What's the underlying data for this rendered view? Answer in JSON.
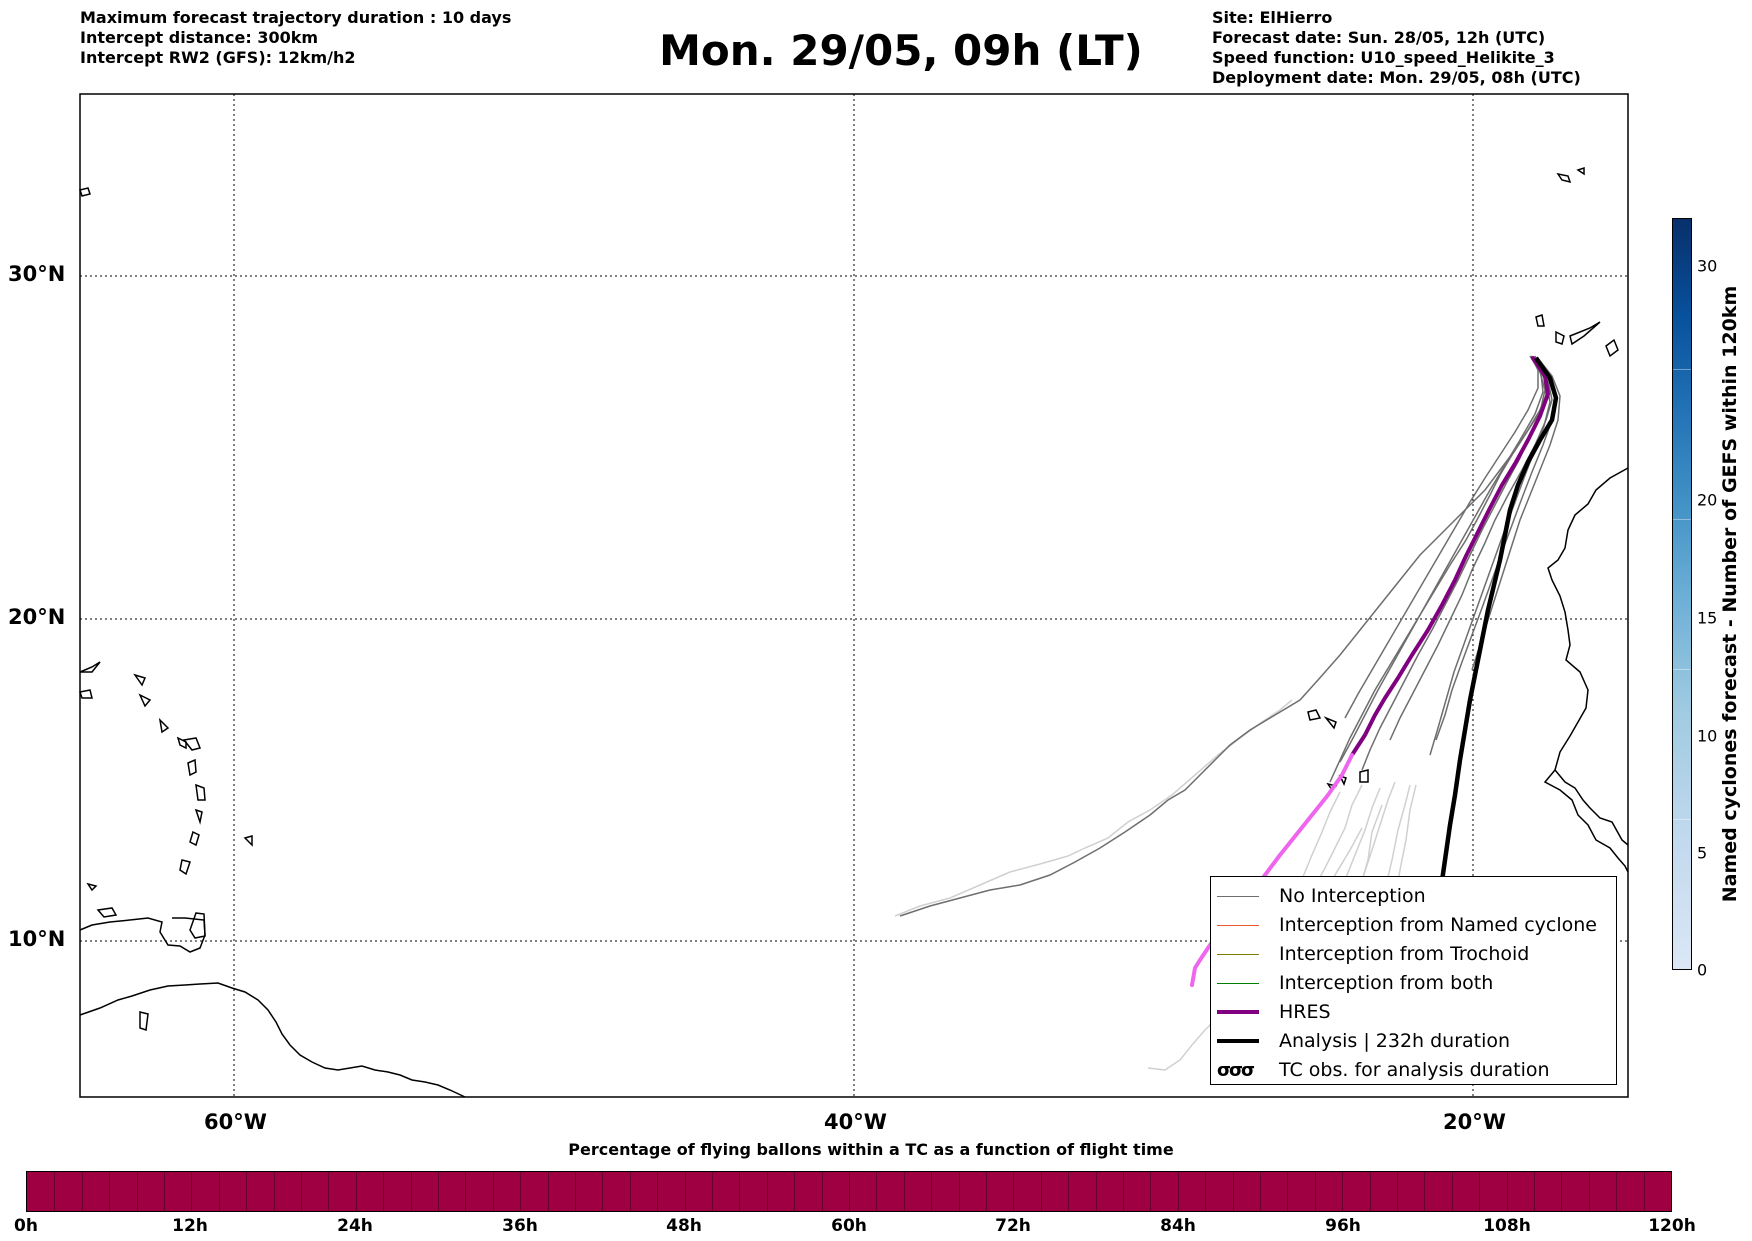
{
  "header": {
    "left_lines": [
      "Maximum forecast trajectory duration : 10 days",
      "Intercept distance: 300km",
      "Intercept RW2 (GFS):  12km/h2"
    ],
    "title": "Mon. 29/05, 09h (LT)",
    "right_lines": [
      "Site: ElHierro",
      "Forecast date: Sun. 28/05, 12h (UTC)",
      "Speed function: U10_speed_Helikite_3",
      "Deployment date: Mon. 29/05, 08h (UTC)"
    ]
  },
  "map": {
    "lat_labels": [
      "30°N",
      "20°N",
      "10°N"
    ],
    "lon_labels": [
      "60°W",
      "40°W",
      "20°W"
    ],
    "gridline_style": "dotted",
    "colors": {
      "no_interception": "#6e6e6e",
      "faded_trajectory": "#d0d0d0",
      "named_cyclone": "#f05a28",
      "trochoid": "#808000",
      "both": "#008000",
      "hres": "#800080",
      "hres_faded": "#ee66ee",
      "analysis": "#000000"
    }
  },
  "legend": {
    "items": [
      {
        "label": "No Interception",
        "style": "thin",
        "color": "#6e6e6e"
      },
      {
        "label": "Interception from Named cyclone",
        "style": "thin",
        "color": "#f05a28"
      },
      {
        "label": "Interception from Trochoid",
        "style": "thin",
        "color": "#808000"
      },
      {
        "label": "Interception from both",
        "style": "thin",
        "color": "#008000"
      },
      {
        "label": "HRES",
        "style": "thick",
        "color": "#800080"
      },
      {
        "label": "Analysis | 232h duration",
        "style": "thick",
        "color": "#000000"
      },
      {
        "label": "TC obs. for analysis duration",
        "style": "symbol",
        "color": "#000000",
        "symbol": "σσσ"
      }
    ]
  },
  "time_colorbar": {
    "title": "Percentage of flying ballons within a TC as a function of flight time",
    "labels": [
      "0h",
      "12h",
      "24h",
      "36h",
      "48h",
      "60h",
      "72h",
      "84h",
      "96h",
      "108h",
      "120h"
    ],
    "fill_color": "#9e0041"
  },
  "cyclone_colorbar": {
    "title": "Named cyclones forecast - Number of GEFS within 120km",
    "ticks": [
      "0",
      "5",
      "10",
      "15",
      "20",
      "30"
    ]
  }
}
